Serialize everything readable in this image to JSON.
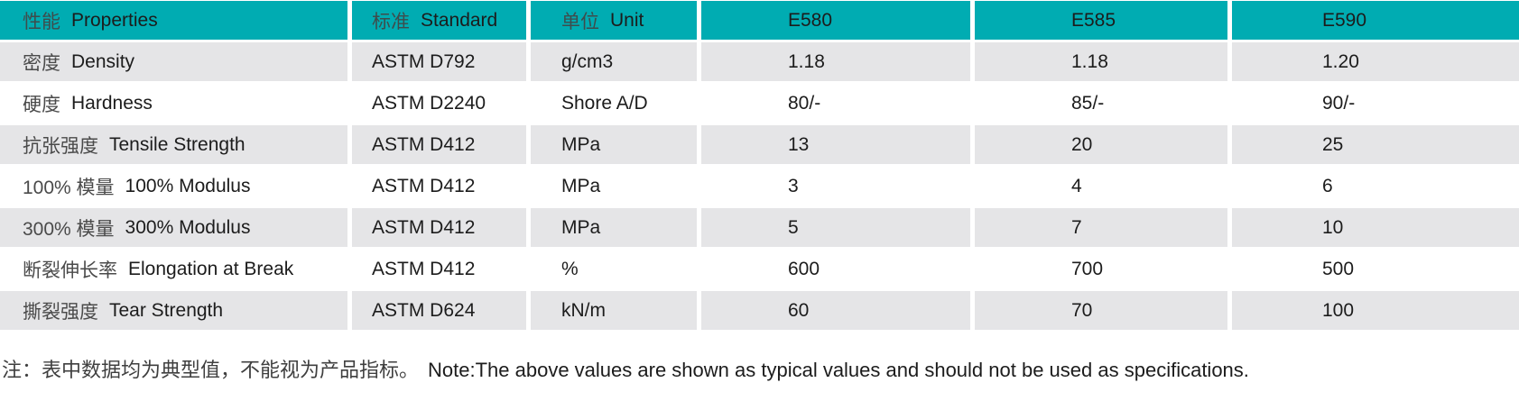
{
  "table": {
    "columns": [
      {
        "zh": "性能",
        "en": "Properties"
      },
      {
        "zh": "标准",
        "en": "Standard"
      },
      {
        "zh": "单位",
        "en": "Unit"
      },
      {
        "label": "E580"
      },
      {
        "label": "E585"
      },
      {
        "label": "E590"
      }
    ],
    "rows": [
      {
        "property": {
          "zh": "密度",
          "en": "Density"
        },
        "standard": "ASTM D792",
        "unit": "g/cm3",
        "e580": "1.18",
        "e585": "1.18",
        "e590": "1.20"
      },
      {
        "property": {
          "zh": "硬度",
          "en": "Hardness"
        },
        "standard": "ASTM D2240",
        "unit": "Shore A/D",
        "e580": "80/-",
        "e585": "85/-",
        "e590": "90/-"
      },
      {
        "property": {
          "zh": "抗张强度",
          "en": "Tensile Strength"
        },
        "standard": "ASTM D412",
        "unit": "MPa",
        "e580": "13",
        "e585": "20",
        "e590": "25"
      },
      {
        "property": {
          "zh": "100% 模量",
          "en": "100% Modulus"
        },
        "standard": "ASTM D412",
        "unit": "MPa",
        "e580": "3",
        "e585": "4",
        "e590": "6"
      },
      {
        "property": {
          "zh": "300% 模量",
          "en": "300% Modulus"
        },
        "standard": "ASTM D412",
        "unit": "MPa",
        "e580": "5",
        "e585": "7",
        "e590": "10"
      },
      {
        "property": {
          "zh": "断裂伸长率",
          "en": "Elongation at Break"
        },
        "standard": "ASTM D412",
        "unit": "%",
        "e580": "600",
        "e585": "700",
        "e590": "500"
      },
      {
        "property": {
          "zh": "撕裂强度",
          "en": "Tear Strength"
        },
        "standard": "ASTM D624",
        "unit": "kN/m",
        "e580": "60",
        "e585": "70",
        "e590": "100"
      }
    ]
  },
  "note": {
    "zh": "注：表中数据均为典型值，不能视为产品指标。",
    "en": "Note:The above values are shown as typical values and should not be used as specifications."
  },
  "colors": {
    "header_bg": "#00acb2",
    "row_alt_bg": "#e5e5e7",
    "row_bg": "#ffffff",
    "text": "#1c1c1c"
  }
}
